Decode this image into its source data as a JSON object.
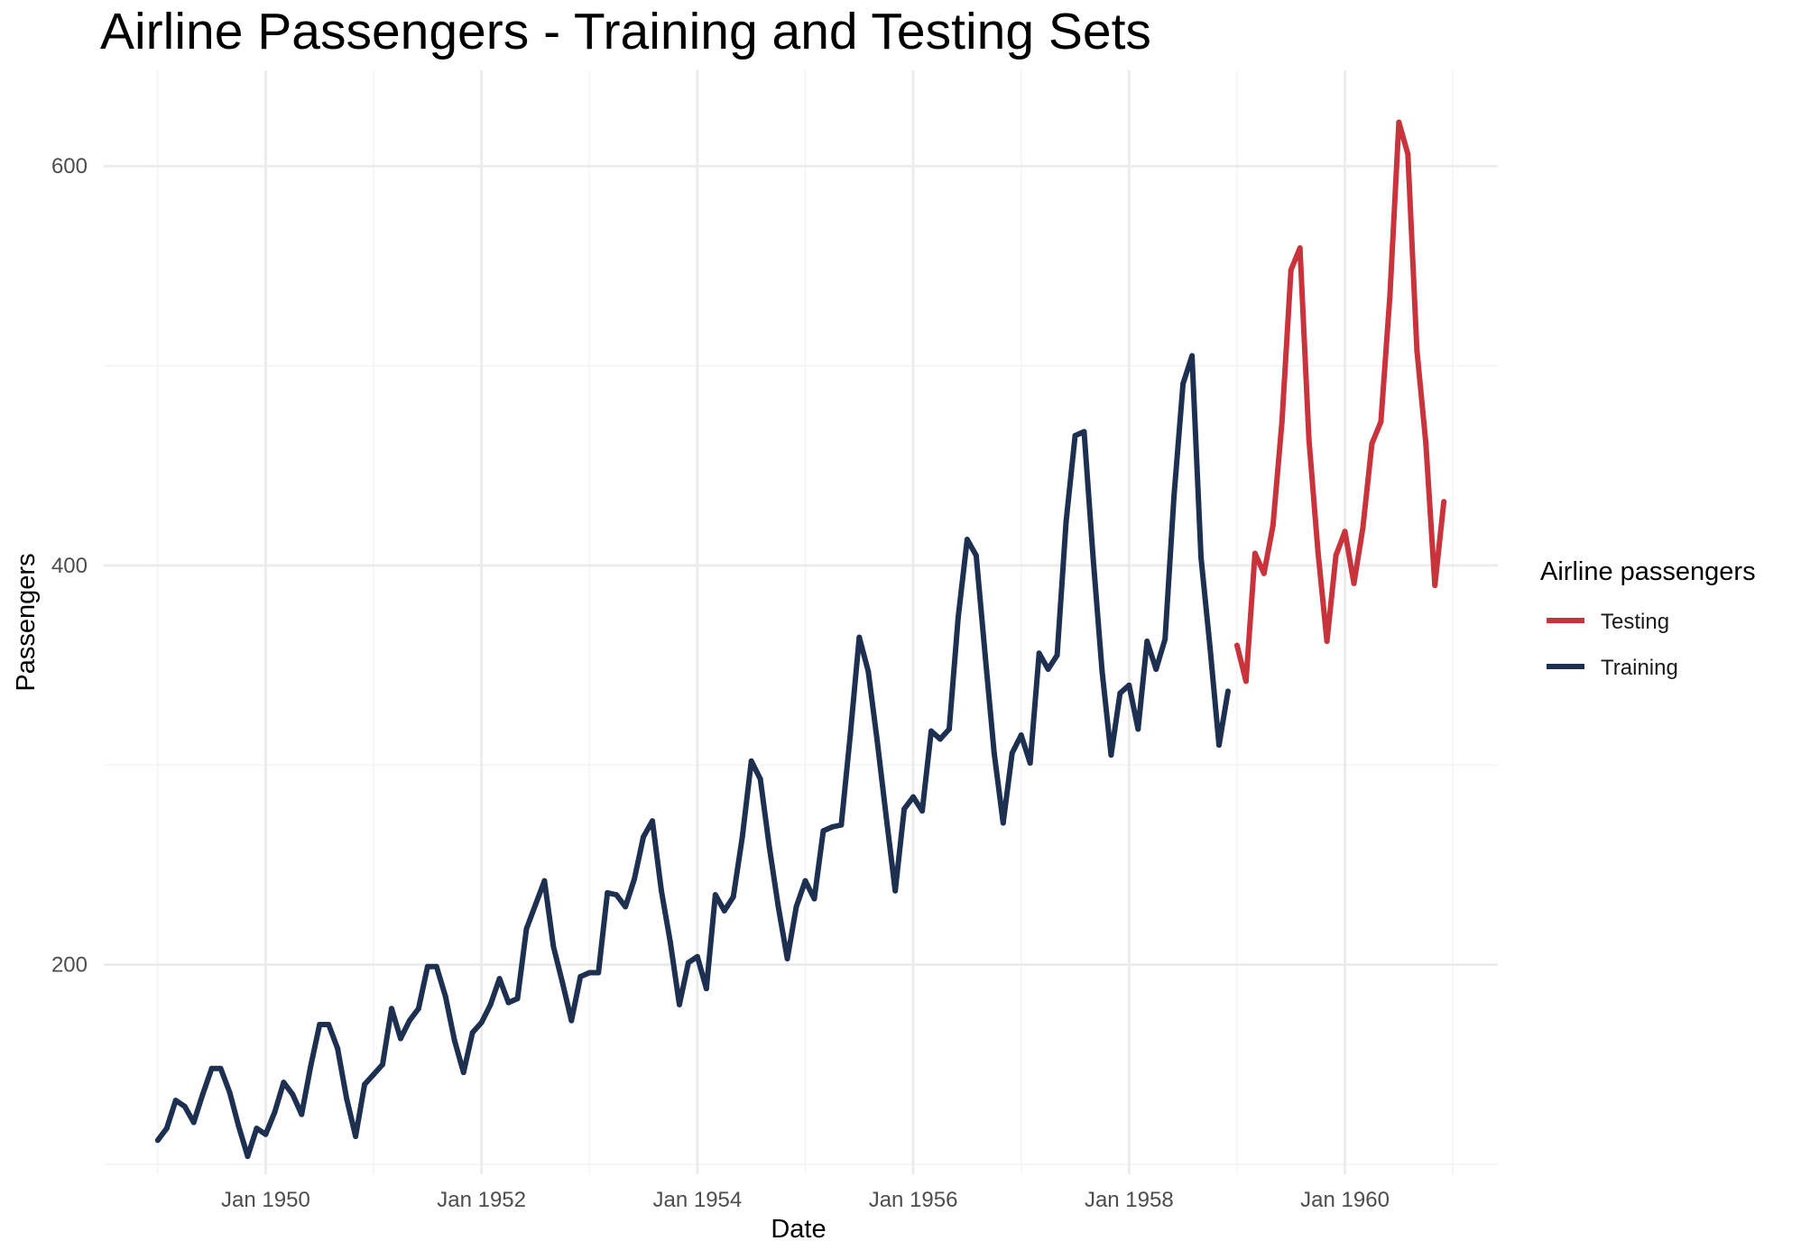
{
  "colors": {
    "testing": "#c8333c",
    "training": "#1e3050",
    "grid_major": "#ebebeb",
    "grid_minor": "#f4f4f4",
    "tick_text": "#4d4d4d"
  },
  "chart_data": {
    "type": "line",
    "title": "Airline Passengers - Training and Testing Sets",
    "xlabel": "Date",
    "ylabel": "Passengers",
    "x_unit": "month",
    "xlim": [
      "1948-07",
      "1961-06"
    ],
    "ylim": [
      95,
      648
    ],
    "x_ticks": [
      {
        "date": "1950-01",
        "label": "Jan 1950"
      },
      {
        "date": "1952-01",
        "label": "Jan 1952"
      },
      {
        "date": "1954-01",
        "label": "Jan 1954"
      },
      {
        "date": "1956-01",
        "label": "Jan 1956"
      },
      {
        "date": "1958-01",
        "label": "Jan 1958"
      },
      {
        "date": "1960-01",
        "label": "Jan 1960"
      }
    ],
    "y_ticks": [
      200,
      400,
      600
    ],
    "y_minor_ticks": [
      100,
      300,
      500
    ],
    "grid": true,
    "legend": {
      "title": "Airline passengers",
      "position": "right",
      "entries": [
        "Testing",
        "Training"
      ]
    },
    "series": [
      {
        "name": "Training",
        "color": "#1e3050",
        "start": "1949-01",
        "values": [
          112,
          118,
          132,
          129,
          121,
          135,
          148,
          148,
          136,
          119,
          104,
          118,
          115,
          126,
          141,
          135,
          125,
          149,
          170,
          170,
          158,
          133,
          114,
          140,
          145,
          150,
          178,
          163,
          172,
          178,
          199,
          199,
          184,
          162,
          146,
          166,
          171,
          180,
          193,
          181,
          183,
          218,
          230,
          242,
          209,
          191,
          172,
          194,
          196,
          196,
          236,
          235,
          229,
          243,
          264,
          272,
          237,
          211,
          180,
          201,
          204,
          188,
          235,
          227,
          234,
          264,
          302,
          293,
          259,
          229,
          203,
          229,
          242,
          233,
          267,
          269,
          270,
          315,
          364,
          347,
          312,
          274,
          237,
          278,
          284,
          277,
          317,
          313,
          318,
          374,
          413,
          405,
          355,
          306,
          271,
          306,
          315,
          301,
          356,
          348,
          355,
          422,
          465,
          467,
          404,
          347,
          305,
          336,
          340,
          318,
          362,
          348,
          363,
          435,
          491,
          505,
          404,
          359,
          310,
          337
        ]
      },
      {
        "name": "Testing",
        "color": "#c8333c",
        "start": "1959-01",
        "values": [
          360,
          342,
          406,
          396,
          420,
          472,
          548,
          559,
          463,
          407,
          362,
          405,
          417,
          391,
          419,
          461,
          472,
          535,
          622,
          606,
          508,
          461,
          390,
          432
        ]
      }
    ]
  }
}
